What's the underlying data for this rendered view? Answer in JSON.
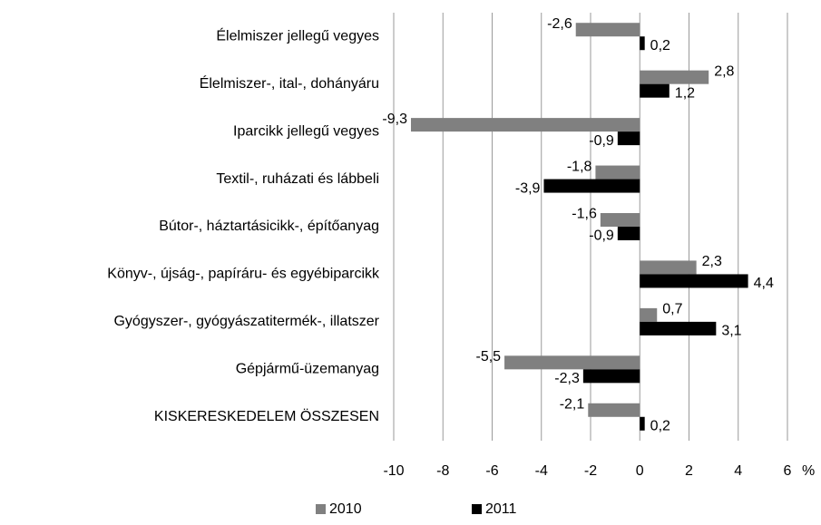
{
  "chart_data": {
    "type": "bar",
    "orientation": "horizontal",
    "categories": [
      "Élelmiszer jellegű vegyes",
      "Élelmiszer-, ital-, dohányáru",
      "Iparcikk jellegű vegyes",
      "Textil-, ruházati és lábbeli",
      "Bútor-, háztartásicikk-, építőanyag",
      "Könyv-, újság-, papíráru- és egyébiparcikk",
      "Gyógyszer-, gyógyászatitermék-, illatszer",
      "Gépjármű-üzemanyag",
      "KISKERESKEDELEM ÖSSZESEN"
    ],
    "series": [
      {
        "name": "2010",
        "color": "#808080",
        "values": [
          -2.6,
          2.8,
          -9.3,
          -1.8,
          -1.6,
          2.3,
          0.7,
          -5.5,
          -2.1
        ],
        "value_labels": [
          "-2,6",
          "2,8",
          "-9,3",
          "-1,8",
          "-1,6",
          "2,3",
          "0,7",
          "-5,5",
          "-2,1"
        ]
      },
      {
        "name": "2011",
        "color": "#000000",
        "values": [
          0.2,
          1.2,
          -0.9,
          -3.9,
          -0.9,
          4.4,
          3.1,
          -2.3,
          0.2
        ],
        "value_labels": [
          "0,2",
          "1,2",
          "-0,9",
          "-3,9",
          "-0,9",
          "4,4",
          "3,1",
          "-2,3",
          "0,2"
        ]
      }
    ],
    "xlim": [
      -10,
      6
    ],
    "xticks": [
      -10,
      -8,
      -6,
      -4,
      -2,
      0,
      2,
      4,
      6
    ],
    "x_unit": "%",
    "grid": true,
    "legend": "bottom"
  }
}
